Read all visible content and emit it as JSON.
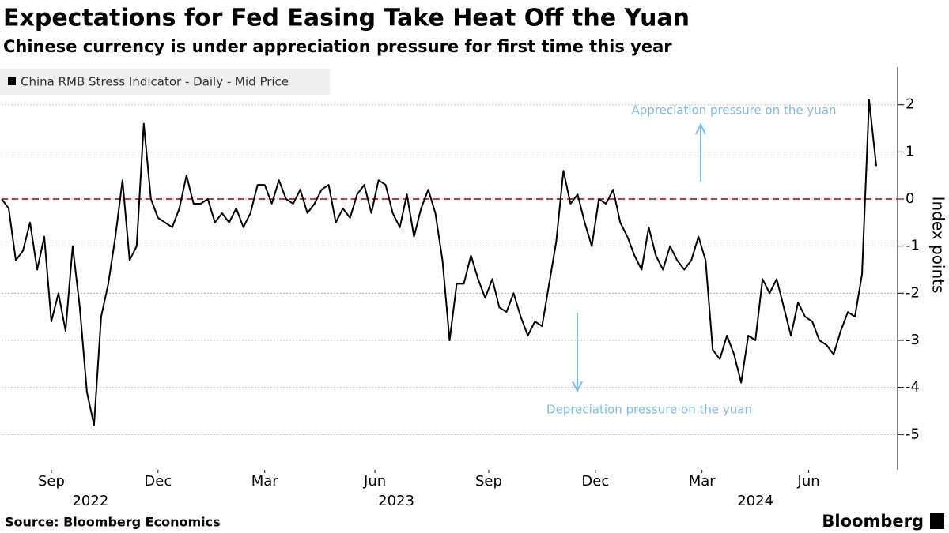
{
  "chart_data": {
    "type": "line",
    "title": "Expectations for Fed Easing Take Heat Off the Yuan",
    "subtitle": "Chinese currency is under appreciation pressure for first time this year",
    "ylabel": "Index points",
    "source": "Source: Bloomberg Economics",
    "brand": "Bloomberg",
    "annotations": [
      "Appreciation pressure on the yuan",
      "Depreciation pressure on the yuan"
    ],
    "annotation_color": "#7cbcea",
    "reference_line": {
      "value": 0,
      "color": "#c8323c"
    },
    "grid": true,
    "xlim": [
      0,
      126
    ],
    "ylim": [
      -5.75,
      2.8
    ],
    "yticks": [
      2,
      1,
      0,
      -1,
      -2,
      -3,
      -4,
      -5
    ],
    "xticks": [
      {
        "value": 7,
        "label": "Sep"
      },
      {
        "value": 22,
        "label": "Dec"
      },
      {
        "value": 37,
        "label": "Mar"
      },
      {
        "value": 52.5,
        "label": "Jun"
      },
      {
        "value": 68.5,
        "label": "Sep"
      },
      {
        "value": 83.5,
        "label": "Dec"
      },
      {
        "value": 98.5,
        "label": "Mar"
      },
      {
        "value": 113.5,
        "label": "Jun"
      }
    ],
    "year_labels": [
      {
        "value": 12.5,
        "label": "2022"
      },
      {
        "value": 55.5,
        "label": "2023"
      },
      {
        "value": 106,
        "label": "2024"
      }
    ],
    "series": [
      {
        "name": "China RMB Stress Indicator - Daily - Mid Price",
        "color": "#000000",
        "values": [
          0,
          -0.2,
          -1.3,
          -1.1,
          -0.5,
          -1.5,
          -0.8,
          -2.6,
          -2.0,
          -2.8,
          -1.0,
          -2.3,
          -4.1,
          -4.8,
          -2.5,
          -1.8,
          -0.8,
          0.4,
          -1.3,
          -1.0,
          1.6,
          0.0,
          -0.4,
          -0.5,
          -0.6,
          -0.2,
          0.5,
          -0.1,
          -0.1,
          0.0,
          -0.5,
          -0.3,
          -0.5,
          -0.2,
          -0.6,
          -0.3,
          0.3,
          0.3,
          -0.1,
          0.4,
          0.0,
          -0.1,
          0.2,
          -0.3,
          -0.1,
          0.2,
          0.3,
          -0.5,
          -0.2,
          -0.4,
          0.1,
          0.3,
          -0.3,
          0.4,
          0.3,
          -0.3,
          -0.6,
          0.1,
          -0.8,
          -0.2,
          0.2,
          -0.3,
          -1.3,
          -3.0,
          -1.8,
          -1.8,
          -1.2,
          -1.7,
          -2.1,
          -1.7,
          -2.3,
          -2.4,
          -2.0,
          -2.5,
          -2.9,
          -2.6,
          -2.7,
          -1.8,
          -0.9,
          0.6,
          -0.1,
          0.1,
          -0.5,
          -1.0,
          0.0,
          -0.1,
          0.2,
          -0.5,
          -0.8,
          -1.2,
          -1.5,
          -0.6,
          -1.2,
          -1.5,
          -1.0,
          -1.3,
          -1.5,
          -1.3,
          -0.8,
          -1.3,
          -3.2,
          -3.4,
          -2.9,
          -3.3,
          -3.9,
          -2.9,
          -3.0,
          -1.7,
          -2.0,
          -1.7,
          -2.3,
          -2.9,
          -2.2,
          -2.5,
          -2.6,
          -3.0,
          -3.1,
          -3.3,
          -2.8,
          -2.4,
          -2.5,
          -1.6,
          2.1,
          0.7
        ]
      }
    ]
  }
}
